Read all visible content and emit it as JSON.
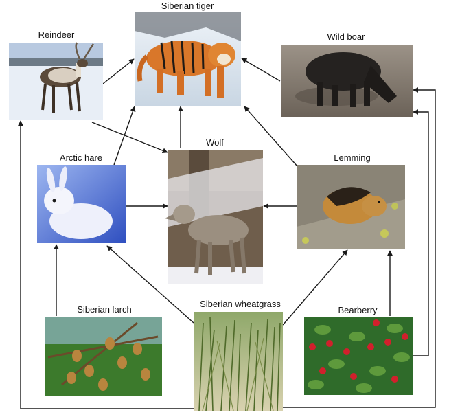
{
  "diagram": {
    "nodes": {
      "siberian_tiger": {
        "label": "Siberian tiger"
      },
      "reindeer": {
        "label": "Reindeer"
      },
      "wild_boar": {
        "label": "Wild boar"
      },
      "arctic_hare": {
        "label": "Arctic hare"
      },
      "wolf": {
        "label": "Wolf"
      },
      "lemming": {
        "label": "Lemming"
      },
      "siberian_larch": {
        "label": "Siberian larch"
      },
      "siberian_wheatgrass": {
        "label": "Siberian wheatgrass"
      },
      "bearberry": {
        "label": "Bearberry"
      }
    },
    "arrows": [
      {
        "from": "Reindeer",
        "to": "Siberian tiger"
      },
      {
        "from": "Reindeer",
        "to": "Wolf"
      },
      {
        "from": "Wild boar",
        "to": "Siberian tiger"
      },
      {
        "from": "Arctic hare",
        "to": "Siberian tiger"
      },
      {
        "from": "Arctic hare",
        "to": "Wolf"
      },
      {
        "from": "Wolf",
        "to": "Siberian tiger"
      },
      {
        "from": "Lemming",
        "to": "Siberian tiger"
      },
      {
        "from": "Lemming",
        "to": "Wolf"
      },
      {
        "from": "Siberian larch",
        "to": "Arctic hare"
      },
      {
        "from": "Siberian wheatgrass",
        "to": "Arctic hare"
      },
      {
        "from": "Siberian wheatgrass",
        "to": "Lemming"
      },
      {
        "from": "Siberian wheatgrass",
        "to": "Reindeer"
      },
      {
        "from": "Siberian wheatgrass",
        "to": "Wild boar"
      },
      {
        "from": "Bearberry",
        "to": "Lemming"
      },
      {
        "from": "Bearberry",
        "to": "Wild boar"
      }
    ]
  }
}
